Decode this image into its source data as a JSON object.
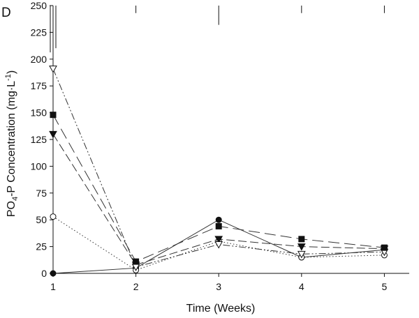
{
  "panel_label": "D",
  "chart_data": {
    "type": "line",
    "title": "",
    "xlabel": "Time (Weeks)",
    "ylabel_parts": {
      "base": "PO",
      "sub": "4",
      "rest": "-P Concentration (mg·L",
      "sup": "-1",
      "end": ")"
    },
    "x": [
      1,
      2,
      3,
      4,
      5
    ],
    "x_ticks": [
      "1",
      "2",
      "3",
      "4",
      "5"
    ],
    "xlim": [
      1,
      5.3
    ],
    "ylim": [
      0,
      250
    ],
    "y_ticks": [
      "0",
      "25",
      "50",
      "75",
      "100",
      "125",
      "150",
      "175",
      "200",
      "225",
      "250"
    ],
    "grid": false,
    "series": [
      {
        "name": "filled circle",
        "marker": "circle",
        "fill": "#111111",
        "dash": "",
        "values": [
          0,
          5,
          50,
          15,
          22
        ]
      },
      {
        "name": "open circle",
        "marker": "circle",
        "fill": "#ffffff",
        "dash": "1.5 3",
        "values": [
          53,
          3,
          30,
          15,
          17
        ]
      },
      {
        "name": "filled triangle",
        "marker": "triangle",
        "fill": "#111111",
        "dash": "12 5",
        "values": [
          130,
          8,
          32,
          25,
          23
        ]
      },
      {
        "name": "open triangle",
        "marker": "triangle",
        "fill": "#ffffff",
        "dash": "10 3 2 3 2 3",
        "values": [
          191,
          6,
          27,
          18,
          20
        ]
      },
      {
        "name": "filled square",
        "marker": "square",
        "fill": "#111111",
        "dash": "16 7",
        "values": [
          148,
          11,
          44,
          32,
          24
        ]
      }
    ],
    "error_bars": [
      {
        "x": 1,
        "low": 205,
        "high": 250
      },
      {
        "x": 2,
        "low": 243,
        "high": 250
      },
      {
        "x": 3,
        "low": 232,
        "high": 250
      },
      {
        "x": 4,
        "low": 243,
        "high": 250
      },
      {
        "x": 5,
        "low": 243,
        "high": 250
      }
    ]
  }
}
